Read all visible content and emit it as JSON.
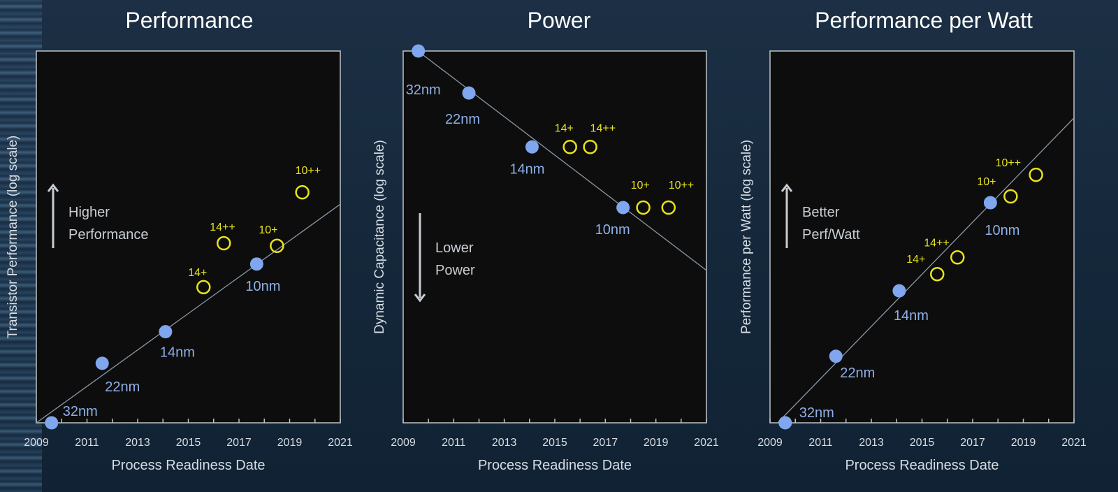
{
  "colors": {
    "process_node": "#7fa6ee",
    "optimization": "#e8e21c",
    "trend_line": "#8a98a8",
    "plot_bg": "#0d0d0d",
    "axis": "#bfc4c9",
    "label": "#d8dde3",
    "node_label": "#8fb0e8"
  },
  "chart_data": [
    {
      "type": "scatter",
      "title": "Performance",
      "xlabel": "Process Readiness Date",
      "ylabel": "Transistor Performance (log scale)",
      "y_scale": "log",
      "y_units": "relative (no tick labels)",
      "xlim": [
        2009,
        2021
      ],
      "ylim": [
        0,
        1
      ],
      "xticks": [
        "2009",
        "2011",
        "2013",
        "2015",
        "2017",
        "2019",
        "2021"
      ],
      "annotation": {
        "arrow": "up",
        "lines": [
          "Higher",
          "Performance"
        ]
      },
      "trend": {
        "x": [
          2009,
          2021
        ],
        "y": [
          0,
          0.588
        ]
      },
      "series": [
        {
          "kind": "process_node",
          "points": [
            {
              "label": "32nm",
              "x": 2009.6,
              "y": 0
            },
            {
              "label": "22nm",
              "x": 2011.6,
              "y": 0.16
            },
            {
              "label": "14nm",
              "x": 2014.1,
              "y": 0.245
            },
            {
              "label": "10nm",
              "x": 2017.7,
              "y": 0.427
            }
          ]
        },
        {
          "kind": "optimization",
          "points": [
            {
              "label": "14+",
              "x": 2015.6,
              "y": 0.365
            },
            {
              "label": "14++",
              "x": 2016.4,
              "y": 0.483
            },
            {
              "label": "10+",
              "x": 2018.5,
              "y": 0.476
            },
            {
              "label": "10++",
              "x": 2019.5,
              "y": 0.62
            }
          ]
        }
      ]
    },
    {
      "type": "scatter",
      "title": "Power",
      "xlabel": "Process Readiness Date",
      "ylabel": "Dynamic Capacitance (log scale)",
      "y_scale": "log",
      "y_units": "relative (no tick labels)",
      "xlim": [
        2009,
        2021
      ],
      "ylim": [
        0,
        1
      ],
      "xticks": [
        "2009",
        "2011",
        "2013",
        "2015",
        "2017",
        "2019",
        "2021"
      ],
      "annotation": {
        "arrow": "down",
        "lines": [
          "Lower",
          "Power"
        ]
      },
      "trend": {
        "x": [
          2009,
          2021
        ],
        "y": [
          1.03,
          0.41
        ]
      },
      "series": [
        {
          "kind": "process_node",
          "points": [
            {
              "label": "32nm",
              "x": 2009.6,
              "y": 1.0
            },
            {
              "label": "22nm",
              "x": 2011.6,
              "y": 0.887
            },
            {
              "label": "14nm",
              "x": 2014.1,
              "y": 0.742
            },
            {
              "label": "10nm",
              "x": 2017.7,
              "y": 0.579
            }
          ]
        },
        {
          "kind": "optimization",
          "points": [
            {
              "label": "14+",
              "x": 2015.6,
              "y": 0.742
            },
            {
              "label": "14++",
              "x": 2016.4,
              "y": 0.742
            },
            {
              "label": "10+",
              "x": 2018.5,
              "y": 0.579
            },
            {
              "label": "10++",
              "x": 2019.5,
              "y": 0.579
            }
          ]
        }
      ]
    },
    {
      "type": "scatter",
      "title": "Performance per Watt",
      "xlabel": "Process Readiness Date",
      "ylabel": "Performance per Watt (log scale)",
      "y_scale": "log",
      "y_units": "relative (no tick labels)",
      "xlim": [
        2009,
        2021
      ],
      "ylim": [
        0,
        1
      ],
      "xticks": [
        "2009",
        "2011",
        "2013",
        "2015",
        "2017",
        "2019",
        "2021"
      ],
      "annotation": {
        "arrow": "up",
        "lines": [
          "Better",
          "Perf/Watt"
        ]
      },
      "trend": {
        "x": [
          2009.3,
          2021
        ],
        "y": [
          0,
          0.82
        ]
      },
      "series": [
        {
          "kind": "process_node",
          "points": [
            {
              "label": "32nm",
              "x": 2009.6,
              "y": 0
            },
            {
              "label": "22nm",
              "x": 2011.6,
              "y": 0.179
            },
            {
              "label": "14nm",
              "x": 2014.1,
              "y": 0.355
            },
            {
              "label": "10nm",
              "x": 2017.7,
              "y": 0.592
            }
          ]
        },
        {
          "kind": "optimization",
          "points": [
            {
              "label": "14+",
              "x": 2015.6,
              "y": 0.4
            },
            {
              "label": "14++",
              "x": 2016.4,
              "y": 0.445
            },
            {
              "label": "10+",
              "x": 2018.5,
              "y": 0.609
            },
            {
              "label": "10++",
              "x": 2019.5,
              "y": 0.667
            }
          ]
        }
      ]
    }
  ]
}
